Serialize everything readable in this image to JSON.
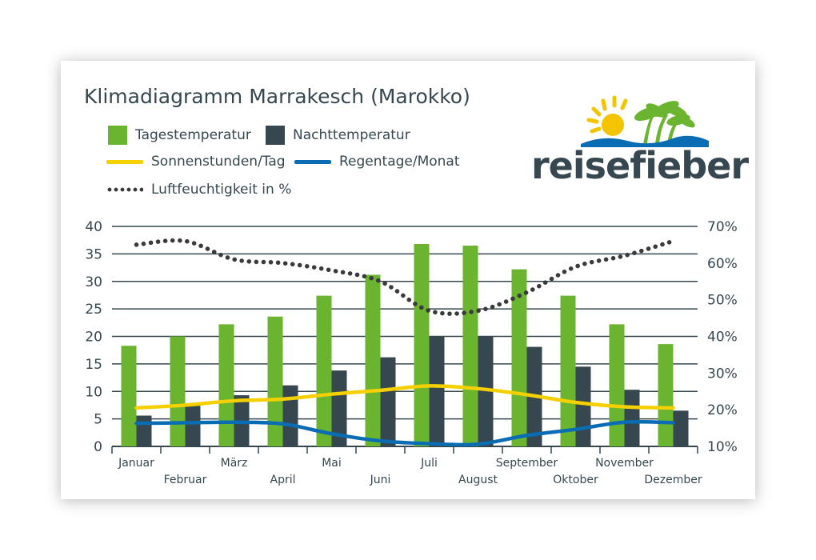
{
  "colors": {
    "day": "#6ab42f",
    "night": "#37474f",
    "sun": "#f5d000",
    "rain": "#0a6cb3",
    "humidity": "#3a3a3a",
    "grid": "#37474f"
  },
  "legend": {
    "day": "Tagestemperatur",
    "night": "Nachttemperatur",
    "sun": "Sonnenstunden/Tag",
    "rain": "Regentage/Monat",
    "humidity": "Luftfeuchtigkeit in %"
  },
  "logo": {
    "text": "reisefieber",
    "icon": "sun-palm-icon"
  },
  "chart_data": {
    "type": "bar",
    "title": "Klimadiagramm Marrakesch (Marokko)",
    "categories": [
      "Januar",
      "Februar",
      "März",
      "April",
      "Mai",
      "Juni",
      "Juli",
      "August",
      "September",
      "Oktober",
      "November",
      "Dezember"
    ],
    "ylim": [
      0,
      40
    ],
    "y_ticks": [
      "0",
      "5",
      "10",
      "15",
      "20",
      "25",
      "30",
      "35",
      "40"
    ],
    "y2lim": [
      10,
      70
    ],
    "y2_ticks": [
      "10%",
      "20%",
      "30%",
      "40%",
      "50%",
      "60%",
      "70%"
    ],
    "series": [
      {
        "name": "Tagestemperatur",
        "type": "bar",
        "axis": "left",
        "values": [
          18.3,
          20.0,
          22.2,
          23.6,
          27.4,
          31.2,
          36.8,
          36.5,
          32.2,
          27.4,
          22.2,
          18.6
        ]
      },
      {
        "name": "Nachttemperatur",
        "type": "bar",
        "axis": "left",
        "values": [
          5.6,
          7.4,
          9.3,
          11.1,
          13.8,
          16.2,
          20.0,
          20.0,
          18.1,
          14.5,
          10.3,
          6.5
        ]
      },
      {
        "name": "Sonnenstunden/Tag",
        "type": "line",
        "axis": "left",
        "values": [
          7.0,
          7.5,
          8.3,
          8.6,
          9.5,
          10.2,
          11.0,
          10.5,
          9.4,
          8.0,
          7.2,
          7.0
        ]
      },
      {
        "name": "Regentage/Monat",
        "type": "line",
        "axis": "left",
        "values": [
          4.2,
          4.3,
          4.4,
          4.1,
          2.3,
          1.0,
          0.5,
          0.4,
          2.0,
          3.1,
          4.4,
          4.3
        ]
      },
      {
        "name": "Luftfeuchtigkeit in %",
        "type": "dotted-line",
        "axis": "right",
        "values": [
          65,
          66,
          61,
          60,
          58,
          55,
          47,
          47,
          52,
          59,
          62,
          66
        ]
      }
    ]
  }
}
